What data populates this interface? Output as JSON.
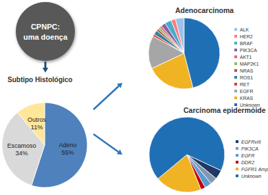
{
  "node": {
    "label": "CPNPC: uma doença"
  },
  "chart_data": [
    {
      "type": "pie",
      "title": "Subtipo Histológico",
      "categories": [
        "Adeno",
        "Escamoso",
        "Outros"
      ],
      "values": [
        55,
        34,
        11
      ],
      "value_labels": [
        "55%",
        "34%",
        "11%"
      ],
      "colors": [
        "#4f81bd",
        "#d9d9d9",
        "#ffe699"
      ],
      "data_labels": true
    },
    {
      "type": "pie",
      "title": "Adenocarcinoma",
      "categories": [
        "ALK",
        "HER2",
        "BRAF",
        "PIK3CA",
        "AKT1",
        "MAP2K1",
        "NRAS",
        "ROS1",
        "RET",
        "EGFR",
        "KRAS",
        "Unknown"
      ],
      "values": [
        4,
        2,
        3,
        2,
        1,
        1,
        1,
        2,
        1,
        15,
        22,
        46
      ],
      "colors": [
        "#9dc3e6",
        "#ff7c80",
        "#4bacc6",
        "#8064a2",
        "#e85d8a",
        "#9bbb59",
        "#c0504d",
        "#31859c",
        "#e03c31",
        "#a6a6a6",
        "#f0b323",
        "#1f6fb5"
      ],
      "legend": "right"
    },
    {
      "type": "pie",
      "title": "Carcinoma epidermóide",
      "categories": [
        "EGFRvIII",
        "PIK3CA",
        "EGFR",
        "DDR2",
        "FGFR1 Amp",
        "Unknown"
      ],
      "values": [
        4,
        3,
        3,
        2,
        20,
        68
      ],
      "colors": [
        "#1f3864",
        "#8497b0",
        "#5b9bd5",
        "#c00000",
        "#f0b323",
        "#1f6fb5"
      ],
      "legend": "right"
    }
  ]
}
